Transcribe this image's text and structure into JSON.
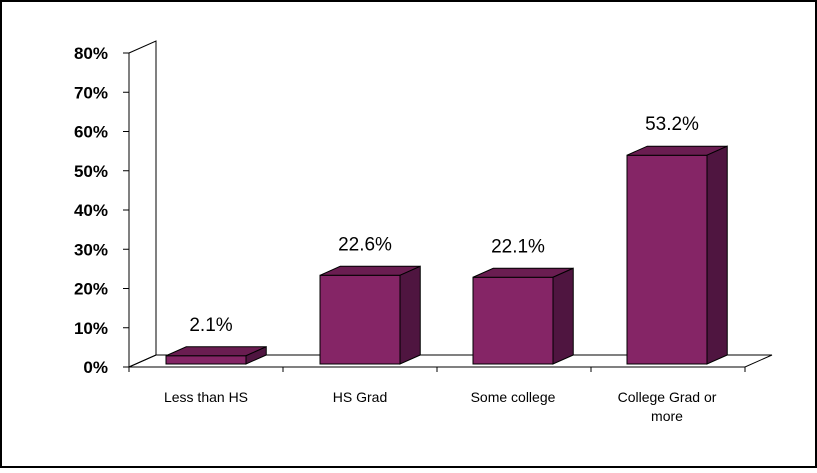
{
  "chart_data": {
    "type": "bar",
    "categories": [
      "Less than HS",
      "HS Grad",
      "Some college",
      "College Grad or more"
    ],
    "values": [
      2.1,
      22.6,
      22.1,
      53.2
    ],
    "value_labels": [
      "2.1%",
      "22.6%",
      "22.1%",
      "53.2%"
    ],
    "y_ticks": [
      "0%",
      "10%",
      "20%",
      "30%",
      "40%",
      "50%",
      "60%",
      "70%",
      "80%"
    ],
    "ylim": [
      0,
      80
    ],
    "grid": false,
    "legend": "none",
    "style": "3d-column",
    "colors": {
      "bar_front": "#852566",
      "bar_top": "#6a1d51",
      "bar_side": "#4f1540",
      "axis": "#000000",
      "text": "#000000",
      "border": "#000000",
      "background": "#ffffff"
    }
  }
}
